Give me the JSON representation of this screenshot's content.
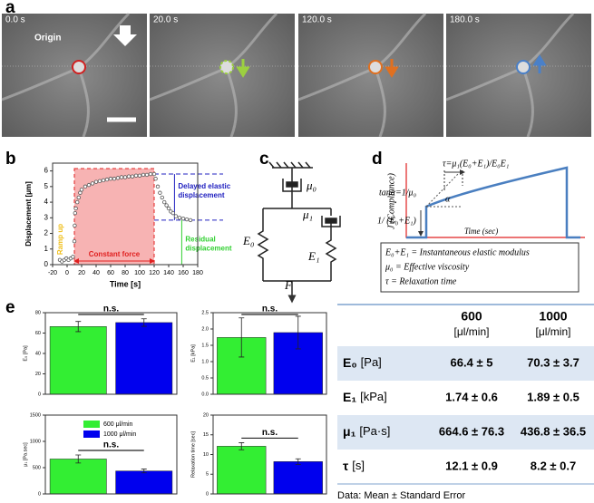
{
  "panel_labels": [
    "a",
    "b",
    "c",
    "d",
    "e"
  ],
  "microscopy": {
    "frames": [
      "0.0 s",
      "20.0 s",
      "120.0 s",
      "180.0 s"
    ],
    "origin_label": "Origin"
  },
  "model_diagram": {
    "labels": [
      "μ₀",
      "E₀",
      "μ₁",
      "E₁",
      "F"
    ]
  },
  "compliance_schematic": {
    "y_label": "J (Compliance)",
    "x_label": "Time (sec)",
    "tau_formula": "τ=μ₁(E₀+E₁)/E₀E₁",
    "slope_formula": "tanα=1/μ₀",
    "angle": "α",
    "step_label": "1/ (E₀+E₁)",
    "legend": [
      "E₀+E₁ = Instantaneous elastic modulus",
      "μ₀ = Effective viscosity",
      "τ = Relaxation time"
    ]
  },
  "chart_data": [
    {
      "type": "scatter",
      "x_label": "Time [s]",
      "y_label": "Displacement [μm]",
      "xlim": [
        -20,
        180
      ],
      "ylim": [
        0,
        6.5
      ],
      "xticks": [
        -20,
        0,
        20,
        40,
        60,
        80,
        100,
        120,
        140,
        160,
        180
      ],
      "yticks": [
        0,
        1,
        2,
        3,
        4,
        5,
        6
      ],
      "color": "#555555",
      "x": [
        -10,
        -7,
        -4,
        -1,
        2,
        5,
        8,
        10,
        10.5,
        11,
        12,
        14,
        16,
        18,
        20,
        25,
        30,
        35,
        40,
        45,
        50,
        55,
        60,
        65,
        70,
        75,
        80,
        85,
        90,
        95,
        100,
        105,
        110,
        115,
        120,
        122,
        125,
        128,
        131,
        134,
        137,
        140,
        143,
        146,
        150,
        155,
        160,
        165,
        170
      ],
      "values": [
        0.3,
        0.2,
        0.3,
        0.4,
        0.3,
        0.4,
        0.5,
        1.5,
        2.5,
        3.3,
        3.6,
        4.0,
        4.3,
        4.6,
        4.8,
        5.0,
        5.1,
        5.2,
        5.3,
        5.35,
        5.4,
        5.45,
        5.5,
        5.5,
        5.55,
        5.6,
        5.6,
        5.65,
        5.65,
        5.7,
        5.7,
        5.75,
        5.75,
        5.8,
        5.8,
        5.5,
        5.0,
        4.6,
        4.3,
        4.0,
        3.8,
        3.6,
        3.4,
        3.3,
        3.1,
        3.0,
        2.95,
        2.9,
        2.85
      ],
      "annotations": [
        {
          "text": "Ramp up",
          "color": "#f0c020"
        },
        {
          "text": "Constant force",
          "color": "#e02020",
          "span": [
            10,
            120
          ]
        },
        {
          "text": "Delayed elastic displacement",
          "color": "#2020c0",
          "x": 148,
          "y_range": [
            2.85,
            5.8
          ]
        },
        {
          "text": "Residual displacement",
          "color": "#30d030",
          "x": 158
        }
      ]
    },
    {
      "type": "bar",
      "y_label": "E₀ [Pa]",
      "ylim": [
        0,
        80
      ],
      "yticks": [
        0,
        20,
        40,
        60,
        80
      ],
      "annotation": "n.s.",
      "series": [
        {
          "color": "#33ee33",
          "values": [
            66.4
          ],
          "errors": [
            5
          ]
        },
        {
          "color": "#0000ee",
          "values": [
            70.3
          ],
          "errors": [
            3.7
          ]
        }
      ]
    },
    {
      "type": "bar",
      "y_label": "E₁ [kPa]",
      "ylim": [
        0,
        2.5
      ],
      "yticks": [
        {
          "value": 0,
          "label": "0.0"
        },
        0.5,
        {
          "value": 1,
          "label": "1.0"
        },
        1.5,
        {
          "value": 2,
          "label": "2.0"
        },
        2.5
      ],
      "annotation": "n.s.",
      "series": [
        {
          "color": "#33ee33",
          "values": [
            1.74
          ],
          "errors": [
            0.6
          ]
        },
        {
          "color": "#0000ee",
          "values": [
            1.89
          ],
          "errors": [
            0.5
          ]
        }
      ]
    },
    {
      "type": "bar",
      "y_label": "μ₁ [Pa.sec]",
      "ylim": [
        0,
        1500
      ],
      "yticks": [
        0,
        500,
        1000,
        1500
      ],
      "annotation": "n.s.",
      "series": [
        {
          "name": "600 μl/min",
          "color": "#33ee33",
          "values": [
            664.6
          ],
          "errors": [
            76.3
          ]
        },
        {
          "name": "1000 μl/min",
          "color": "#0000ee",
          "values": [
            436.8
          ],
          "errors": [
            36.5
          ]
        }
      ]
    },
    {
      "type": "bar",
      "y_label": "Relaxation time [sec]",
      "ylim": [
        0,
        20
      ],
      "yticks": [
        0,
        5,
        10,
        15,
        20
      ],
      "annotation": "n.s.",
      "series": [
        {
          "color": "#33ee33",
          "values": [
            12.1
          ],
          "errors": [
            0.9
          ]
        },
        {
          "color": "#0000ee",
          "values": [
            8.2
          ],
          "errors": [
            0.7
          ]
        }
      ]
    }
  ],
  "table": {
    "header": [
      [
        "600",
        "[μl/min]"
      ],
      [
        "1000",
        "[μl/min]"
      ]
    ],
    "rows": [
      {
        "param": "E₀",
        "unit": "[Pa]",
        "cells": [
          "66.4 ± 5",
          "70.3 ± 3.7"
        ]
      },
      {
        "param": "E₁",
        "unit": "[kPa]",
        "cells": [
          "1.74 ± 0.6",
          "1.89 ± 0.5"
        ]
      },
      {
        "param": "μ₁",
        "unit": "[Pa·s]",
        "cells": [
          "664.6 ± 76.3",
          "436.8 ± 36.5"
        ]
      },
      {
        "param": "τ",
        "unit": "[s]",
        "cells": [
          "12.1 ± 0.9",
          "8.2 ± 0.7"
        ]
      }
    ],
    "footnote": "Data: Mean ± Standard Error"
  }
}
